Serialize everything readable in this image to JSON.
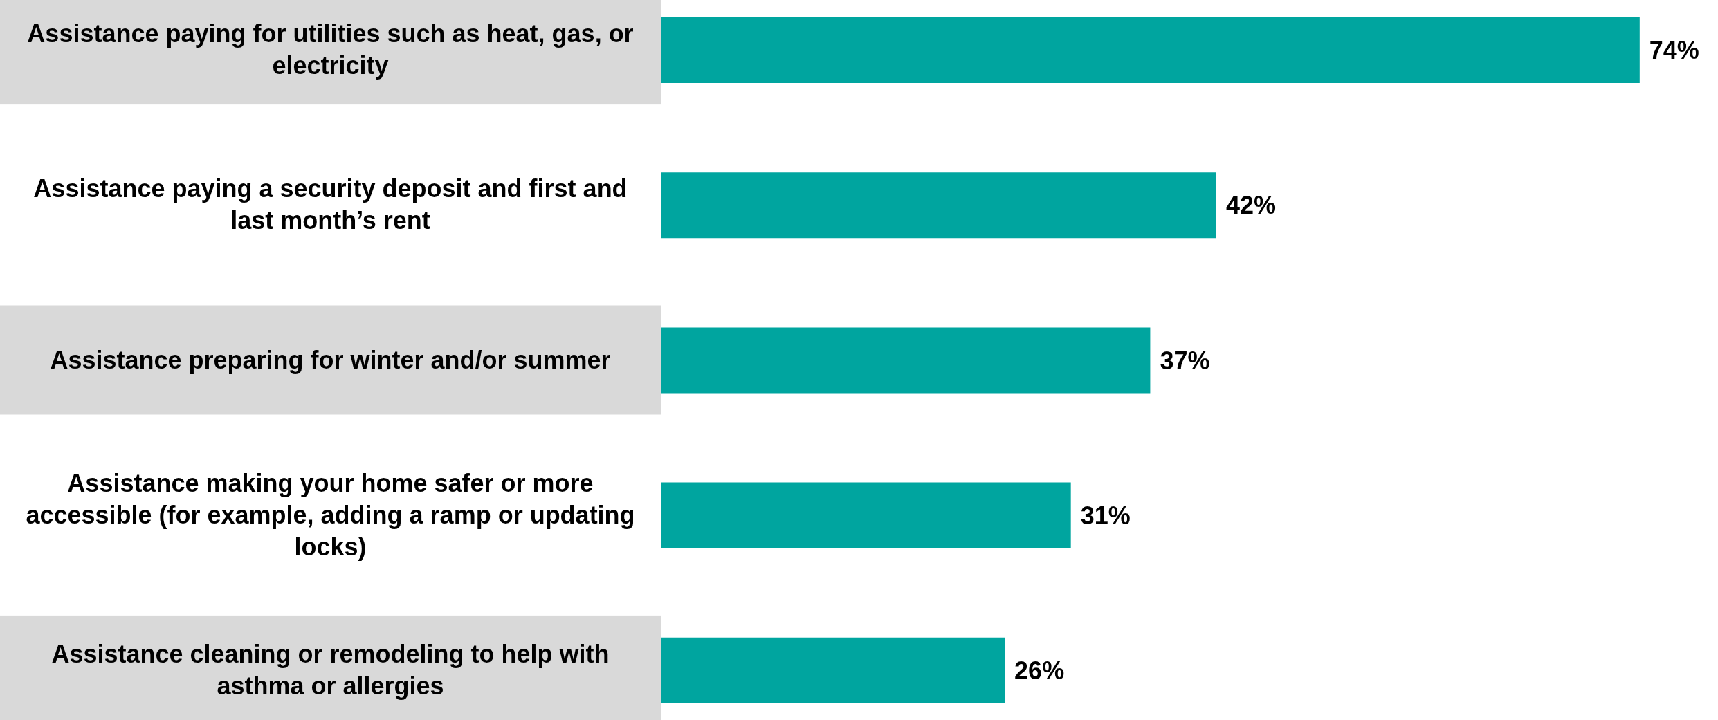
{
  "chart_data": {
    "type": "bar",
    "orientation": "horizontal",
    "categories": [
      "Assistance paying for utilities such as heat, gas, or electricity",
      "Assistance paying a security deposit and first and last month’s rent",
      "Assistance preparing for winter and/or summer",
      "Assistance making your home safer or more accessible (for example, adding a ramp or updating locks)",
      "Assistance cleaning or remodeling to help with asthma or allergies"
    ],
    "values": [
      74,
      42,
      37,
      31,
      26
    ],
    "value_labels": [
      "74%",
      "42%",
      "37%",
      "31%",
      "26%"
    ],
    "color": "#00a59f",
    "tick_labels": "y",
    "grid": false,
    "legend": false
  }
}
